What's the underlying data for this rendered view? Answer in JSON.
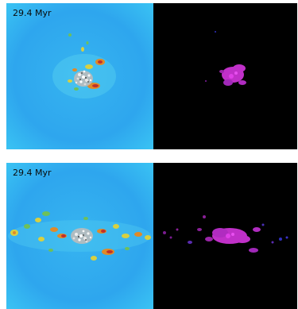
{
  "panels": [
    {
      "time_label": "29.4 Myr"
    },
    {
      "time_label": "29.4 Myr"
    }
  ],
  "colors": {
    "background_sky": "#2ea6ee",
    "background_light": "#3cc8f4",
    "right_panel_bg": "#000000",
    "clump_red": "#c0302a",
    "clump_orange": "#e08a28",
    "clump_yellow": "#d8d040",
    "clump_green": "#6ec05a",
    "stars": "#e8e8e8",
    "magenta": "#c030c8"
  }
}
